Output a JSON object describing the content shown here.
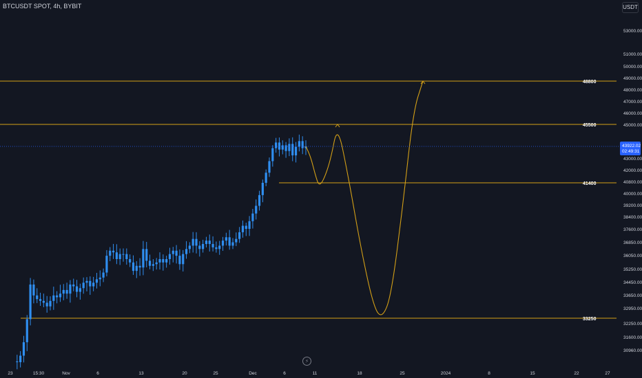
{
  "header": {
    "title": "BTCUSDT SPOT, 4h, BYBIT",
    "currency": "USDT"
  },
  "colors": {
    "background": "#131722",
    "candle": "#2f8ef0",
    "level": "#d4a017",
    "text": "#d1d4dc",
    "price_tag": "#2962ff"
  },
  "chart_data": {
    "type": "candlestick",
    "title": "BTCUSDT SPOT, 4h, BYBIT",
    "y_tick_labels": [
      "53000.00",
      "51000.00",
      "50000.00",
      "49000.00",
      "48000.00",
      "47000.00",
      "46000.00",
      "45000.00",
      "43000.00",
      "42000.00",
      "40800.00",
      "40000.00",
      "39200.00",
      "38400.00",
      "37600.00",
      "36850.00",
      "36050.00",
      "35250.00",
      "34450.00",
      "33650.00",
      "32950.00",
      "32250.00",
      "31600.00",
      "30960.00"
    ],
    "x_tick_labels": [
      "23",
      "15:30",
      "Nov",
      "6",
      "13",
      "20",
      "25",
      "Dec",
      "6",
      "11",
      "18",
      "25",
      "2024",
      "8",
      "15",
      "22",
      "27"
    ],
    "current_price": {
      "price": "43922.02",
      "countdown": "02:49:31"
    },
    "levels": [
      {
        "label": "48800",
        "value": 48800
      },
      {
        "label": "45500",
        "value": 45500
      },
      {
        "label": "41400",
        "value": 41400
      },
      {
        "label": "33250",
        "value": 33250
      }
    ],
    "price_path_approx": [
      31000,
      30960,
      31300,
      32000,
      33200,
      35100,
      34500,
      34300,
      34200,
      34100,
      33900,
      34200,
      34500,
      34400,
      34600,
      34800,
      34600,
      35100,
      35000,
      34700,
      34900,
      35200,
      35300,
      35000,
      35200,
      35400,
      35500,
      35800,
      36800,
      37100,
      37000,
      36600,
      36900,
      36900,
      36600,
      36400,
      35900,
      36200,
      36100,
      37200,
      36500,
      36200,
      36300,
      36400,
      36600,
      36400,
      36600,
      36900,
      37100,
      36800,
      36300,
      36900,
      37200,
      37400,
      37800,
      37400,
      37200,
      37500,
      37700,
      37500,
      37300,
      37200,
      37400,
      37700,
      37900,
      37400,
      37600,
      37800,
      38200,
      38600,
      38400,
      38900,
      39400,
      39900,
      40600,
      41400,
      42100,
      42900,
      43800,
      44200,
      43700,
      44000,
      43600,
      44100,
      43300,
      43900,
      44300,
      43800,
      43922
    ],
    "projection_path_approx": [
      43922,
      43200,
      41900,
      41200,
      41600,
      43000,
      45500,
      42000,
      37000,
      33800,
      33250,
      34500,
      40000,
      46500,
      48800
    ]
  }
}
